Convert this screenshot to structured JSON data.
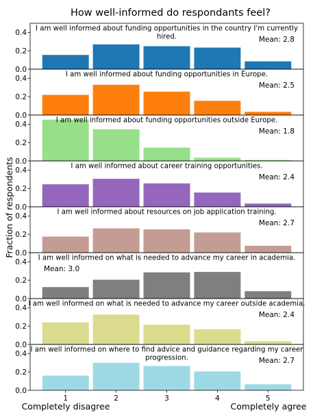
{
  "figure": {
    "title": "How well-informed do respondants feel?",
    "ylabel": "Fraction of respondents",
    "left_label": "Completely disagree",
    "right_label": "Completely agree"
  },
  "chart_data": {
    "type": "bar",
    "categories": [
      "1",
      "2",
      "3",
      "4",
      "5"
    ],
    "ylim": [
      0,
      0.5
    ],
    "yticks": [
      "0.0",
      "0.2",
      "0.4"
    ],
    "grid": false,
    "panels": [
      {
        "lines": [
          "I am well informed about funding opportunities in the country I'm currently",
          "hired."
        ],
        "values": [
          0.155,
          0.27,
          0.25,
          0.235,
          0.085
        ],
        "mean": "Mean: 2.8",
        "mean_pos": "right",
        "color": "#1f77b4"
      },
      {
        "lines": [
          "I am well informed about funding opportunities in Europe."
        ],
        "values": [
          0.22,
          0.33,
          0.255,
          0.155,
          0.035
        ],
        "mean": "Mean: 2.5",
        "mean_pos": "right",
        "color": "#ff7f0e"
      },
      {
        "lines": [
          "I am well informed about funding opportunities outside Europe."
        ],
        "values": [
          0.45,
          0.345,
          0.145,
          0.035,
          0.01
        ],
        "mean": "Mean: 1.8",
        "mean_pos": "right",
        "color": "#98df8a"
      },
      {
        "lines": [
          "I am well informed about career training opportunities."
        ],
        "values": [
          0.245,
          0.305,
          0.255,
          0.155,
          0.035
        ],
        "mean": "Mean: 2.4",
        "mean_pos": "right",
        "color": "#9467bd"
      },
      {
        "lines": [
          "I am well informed about resources on job application training."
        ],
        "values": [
          0.175,
          0.265,
          0.255,
          0.22,
          0.075
        ],
        "mean": "Mean: 2.7",
        "mean_pos": "right",
        "color": "#c49c94"
      },
      {
        "lines": [
          "I am well informed on what is needed to advance my career in academia."
        ],
        "values": [
          0.125,
          0.205,
          0.285,
          0.29,
          0.08
        ],
        "mean": "Mean: 3.0",
        "mean_pos": "left",
        "color": "#7f7f7f"
      },
      {
        "lines": [
          "I am well informed on what is needed to advance my career outside academia."
        ],
        "values": [
          0.24,
          0.325,
          0.215,
          0.165,
          0.035
        ],
        "mean": "Mean: 2.4",
        "mean_pos": "right",
        "color": "#dbdb8d"
      },
      {
        "lines": [
          "I am well informed on where to find advice and guidance regarding my career",
          "progression."
        ],
        "values": [
          0.16,
          0.3,
          0.265,
          0.205,
          0.065
        ],
        "mean": "Mean: 2.7",
        "mean_pos": "right",
        "color": "#9edae5"
      }
    ]
  }
}
